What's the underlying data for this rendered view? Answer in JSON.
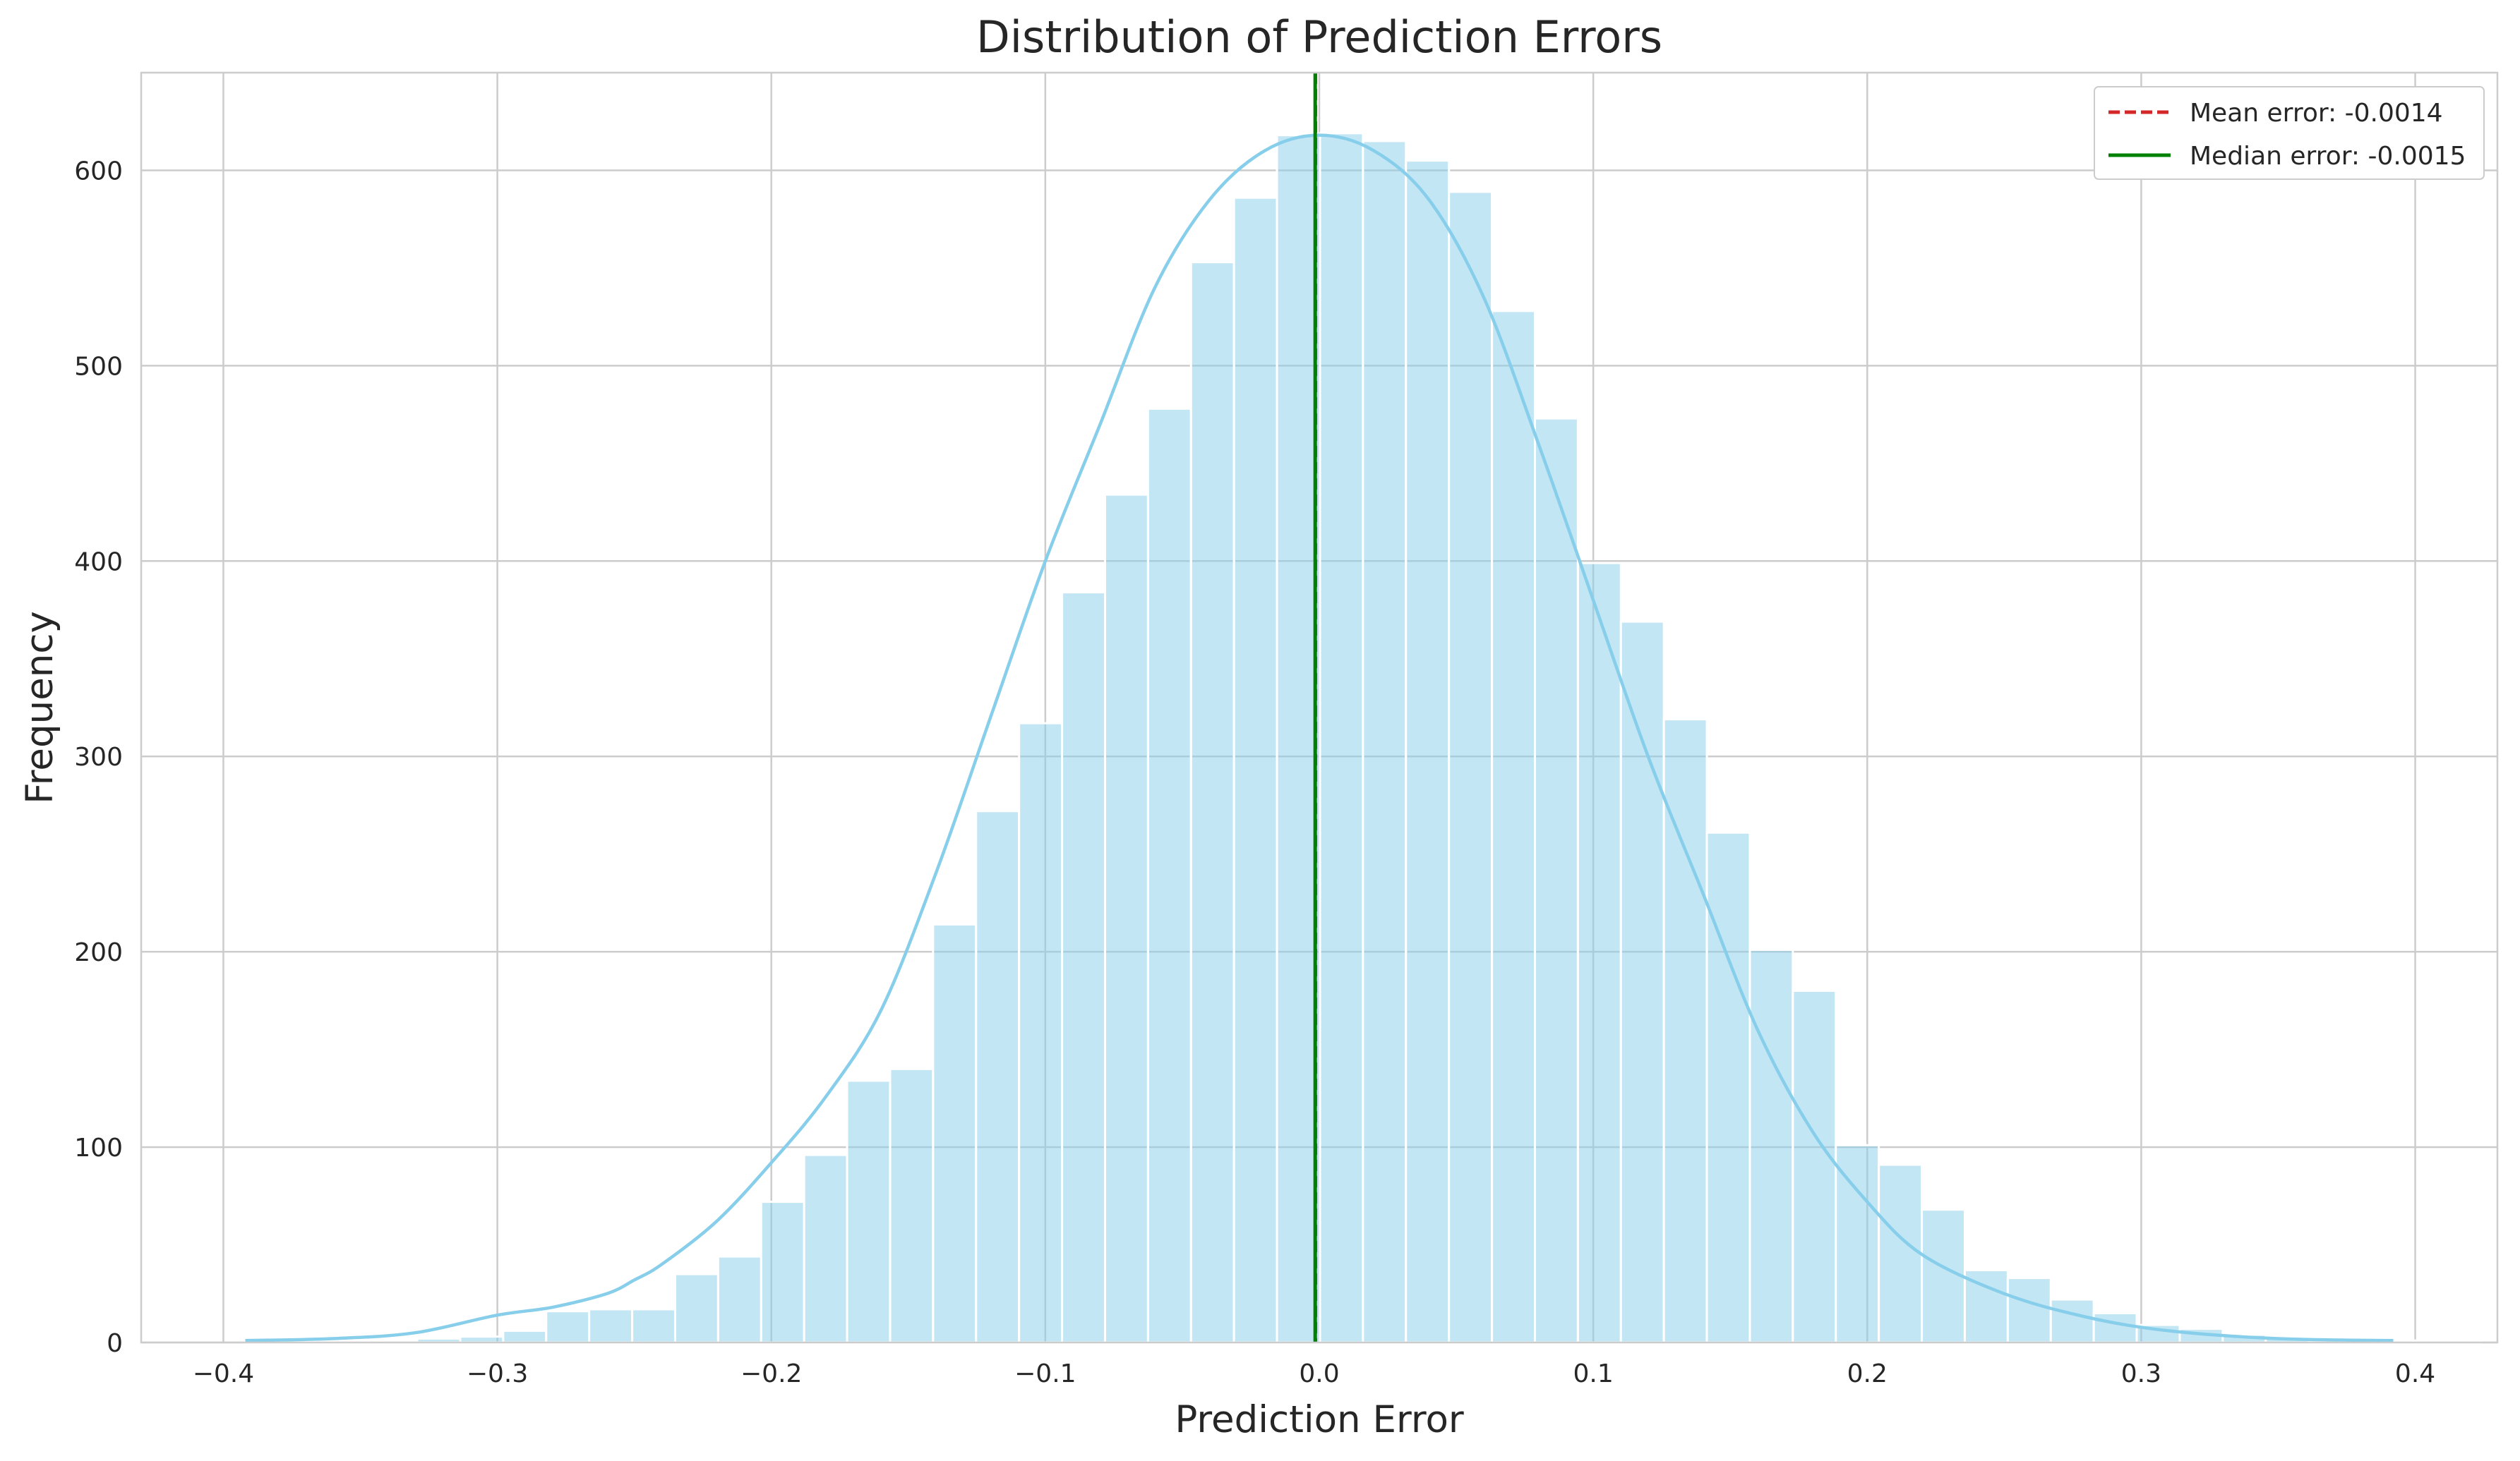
{
  "chart_data": {
    "type": "bar",
    "title": "Distribution of Prediction Errors",
    "xlabel": "Prediction Error",
    "ylabel": "Frequency",
    "xlim": [
      -0.43,
      0.43
    ],
    "ylim": [
      0,
      650
    ],
    "grid": true,
    "xticks": [
      -0.4,
      -0.3,
      -0.2,
      -0.1,
      0.0,
      0.1,
      0.2,
      0.3,
      0.4
    ],
    "xtick_labels": [
      "−0.4",
      "−0.3",
      "−0.2",
      "−0.1",
      "0.0",
      "0.1",
      "0.2",
      "0.3",
      "0.4"
    ],
    "yticks": [
      0,
      100,
      200,
      300,
      400,
      500,
      600
    ],
    "ytick_labels": [
      "0",
      "100",
      "200",
      "300",
      "400",
      "500",
      "600"
    ],
    "histogram": {
      "bin_start": -0.392,
      "bin_width": 0.01569,
      "counts": [
        1,
        1,
        1,
        1,
        2,
        3,
        6,
        16,
        17,
        17,
        35,
        44,
        72,
        96,
        134,
        140,
        214,
        272,
        317,
        384,
        434,
        478,
        553,
        586,
        618,
        619,
        615,
        605,
        589,
        528,
        473,
        399,
        369,
        319,
        261,
        201,
        180,
        101,
        91,
        68,
        37,
        33,
        22,
        15,
        9,
        7,
        4,
        2,
        1,
        1,
        1,
        1
      ],
      "color": "#87CEEB"
    },
    "kde": {
      "name": "",
      "color": "#87CEEB",
      "x": [
        -0.392,
        -0.36,
        -0.33,
        -0.3,
        -0.28,
        -0.26,
        -0.25,
        -0.24,
        -0.22,
        -0.2,
        -0.18,
        -0.16,
        -0.14,
        -0.12,
        -0.1,
        -0.08,
        -0.06,
        -0.04,
        -0.02,
        0.0,
        0.02,
        0.04,
        0.06,
        0.08,
        0.1,
        0.12,
        0.14,
        0.16,
        0.18,
        0.2,
        0.22,
        0.25,
        0.28,
        0.31,
        0.35,
        0.392
      ],
      "y": [
        1,
        2,
        5,
        14,
        18,
        25,
        32,
        40,
        62,
        92,
        126,
        170,
        240,
        320,
        400,
        470,
        540,
        585,
        610,
        618,
        610,
        585,
        535,
        460,
        380,
        300,
        230,
        160,
        108,
        72,
        45,
        25,
        13,
        6,
        2,
        1
      ]
    },
    "lines": [
      {
        "name": "Mean error: -0.0014",
        "x": -0.0014,
        "color": "#d62728",
        "style": "dashed"
      },
      {
        "name": "Median error: -0.0015",
        "x": -0.0015,
        "color": "#008000",
        "style": "solid"
      }
    ],
    "legend": {
      "placement": "top-right",
      "entries": [
        "Mean error: -0.0014",
        "Median error: -0.0015"
      ]
    }
  }
}
